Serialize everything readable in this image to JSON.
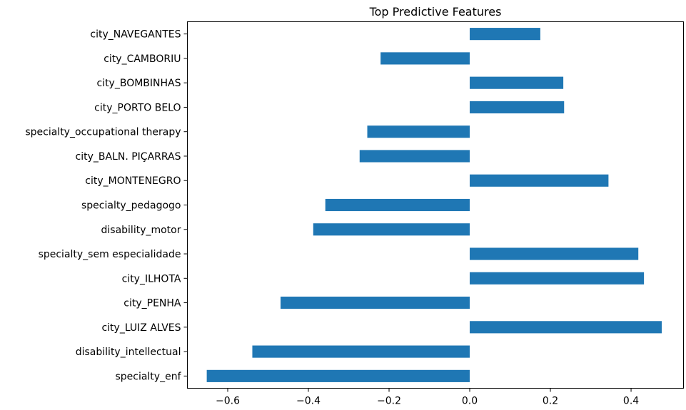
{
  "chart_data": {
    "type": "bar",
    "orientation": "horizontal",
    "title": "Top Predictive Features",
    "xlabel": "",
    "ylabel": "",
    "xlim": [
      -0.7,
      0.53
    ],
    "grid": false,
    "bar_color": "#1f77b4",
    "categories": [
      "city_NAVEGANTES",
      "city_CAMBORIU",
      "city_BOMBINHAS",
      "city_PORTO BELO",
      "specialty_occupational therapy",
      "city_BALN. PIÇARRAS",
      "city_MONTENEGRO",
      "specialty_pedagogo",
      "disability_motor",
      "specialty_sem especialidade",
      "city_ILHOTA",
      "city_PENHA",
      "city_LUIZ ALVES",
      "disability_intellectual",
      "specialty_enf"
    ],
    "values": [
      0.175,
      -0.221,
      0.232,
      0.234,
      -0.254,
      -0.273,
      0.344,
      -0.358,
      -0.388,
      0.418,
      0.432,
      -0.469,
      0.476,
      -0.539,
      -0.652
    ],
    "xticks": [
      -0.6,
      -0.4,
      -0.2,
      0.0,
      0.2,
      0.4
    ],
    "xtick_labels": [
      "−0.6",
      "−0.4",
      "−0.2",
      "0.0",
      "0.2",
      "0.4"
    ]
  }
}
